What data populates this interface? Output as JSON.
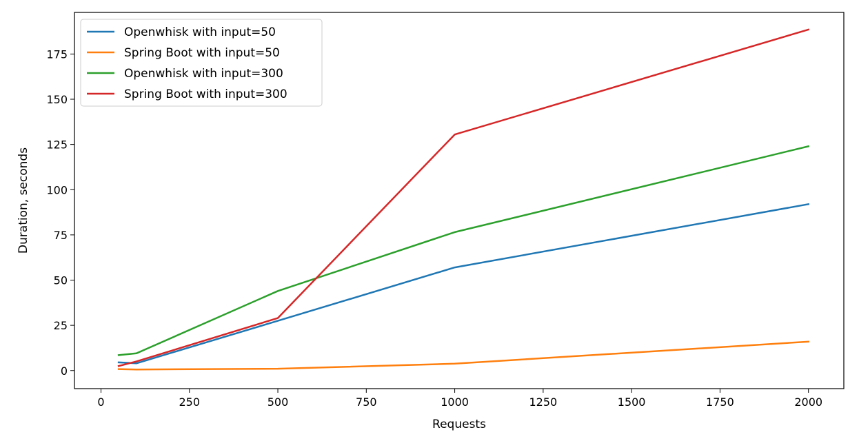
{
  "chart_data": {
    "type": "line",
    "title": "",
    "xlabel": "Requests",
    "ylabel": "Duration, seconds",
    "xlim": [
      -75,
      2100
    ],
    "ylim": [
      -10,
      198
    ],
    "xticks": [
      0,
      250,
      500,
      750,
      1000,
      1250,
      1500,
      1750,
      2000
    ],
    "yticks": [
      0,
      25,
      50,
      75,
      100,
      125,
      150,
      175
    ],
    "grid": false,
    "legend_position": "top-left",
    "x": [
      50,
      100,
      500,
      1000,
      2000
    ],
    "series": [
      {
        "name": "Openwhisk with input=50",
        "color": "#1f77b4",
        "values": [
          4.5,
          4.0,
          27.5,
          57.0,
          92.0
        ]
      },
      {
        "name": "Spring Boot with input=50",
        "color": "#ff7f0e",
        "values": [
          0.8,
          0.6,
          1.0,
          3.8,
          16.0
        ]
      },
      {
        "name": "Openwhisk with input=300",
        "color": "#2ca02c",
        "values": [
          8.5,
          9.5,
          44.0,
          76.5,
          124.0
        ]
      },
      {
        "name": "Spring Boot with input=300",
        "color": "#d62728",
        "values": [
          2.5,
          5.0,
          29.0,
          130.5,
          188.5
        ]
      }
    ]
  }
}
